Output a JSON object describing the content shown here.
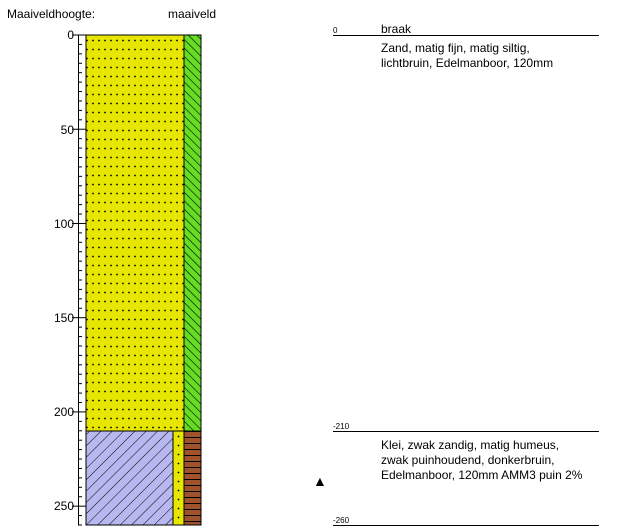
{
  "header": {
    "left_label": "Maaiveldhoogte:",
    "right_label": "maaiveld"
  },
  "axis": {
    "ticks": [
      "0",
      "50",
      "100",
      "150",
      "200",
      "250"
    ],
    "values": [
      0,
      50,
      100,
      150,
      200,
      250
    ],
    "max": 260
  },
  "layers": [
    {
      "top": 0,
      "bottom": 210,
      "top_label": "0",
      "name": "braak",
      "desc_lines": [
        "Zand, matig fijn, matig siltig,",
        "lichtbruin,  Edelmanboor,  120mm"
      ],
      "main_fill": "#e6e600",
      "side_fill": "#66dd22"
    },
    {
      "top": 210,
      "bottom": 260,
      "top_label": "-210",
      "bottom_label": "-260",
      "name": "",
      "desc_lines": [
        "Klei, zwak zandig, matig humeus,",
        "zwak puinhoudend, donkerbruin,",
        "Edelmanboor, 120mm AMM3 puin 2%"
      ],
      "main_fill": "#b8b8f0",
      "mid_fill": "#e6e600",
      "side_fill": "#a0522d"
    }
  ],
  "marker": {
    "symbol": "▲",
    "depth": 235
  }
}
